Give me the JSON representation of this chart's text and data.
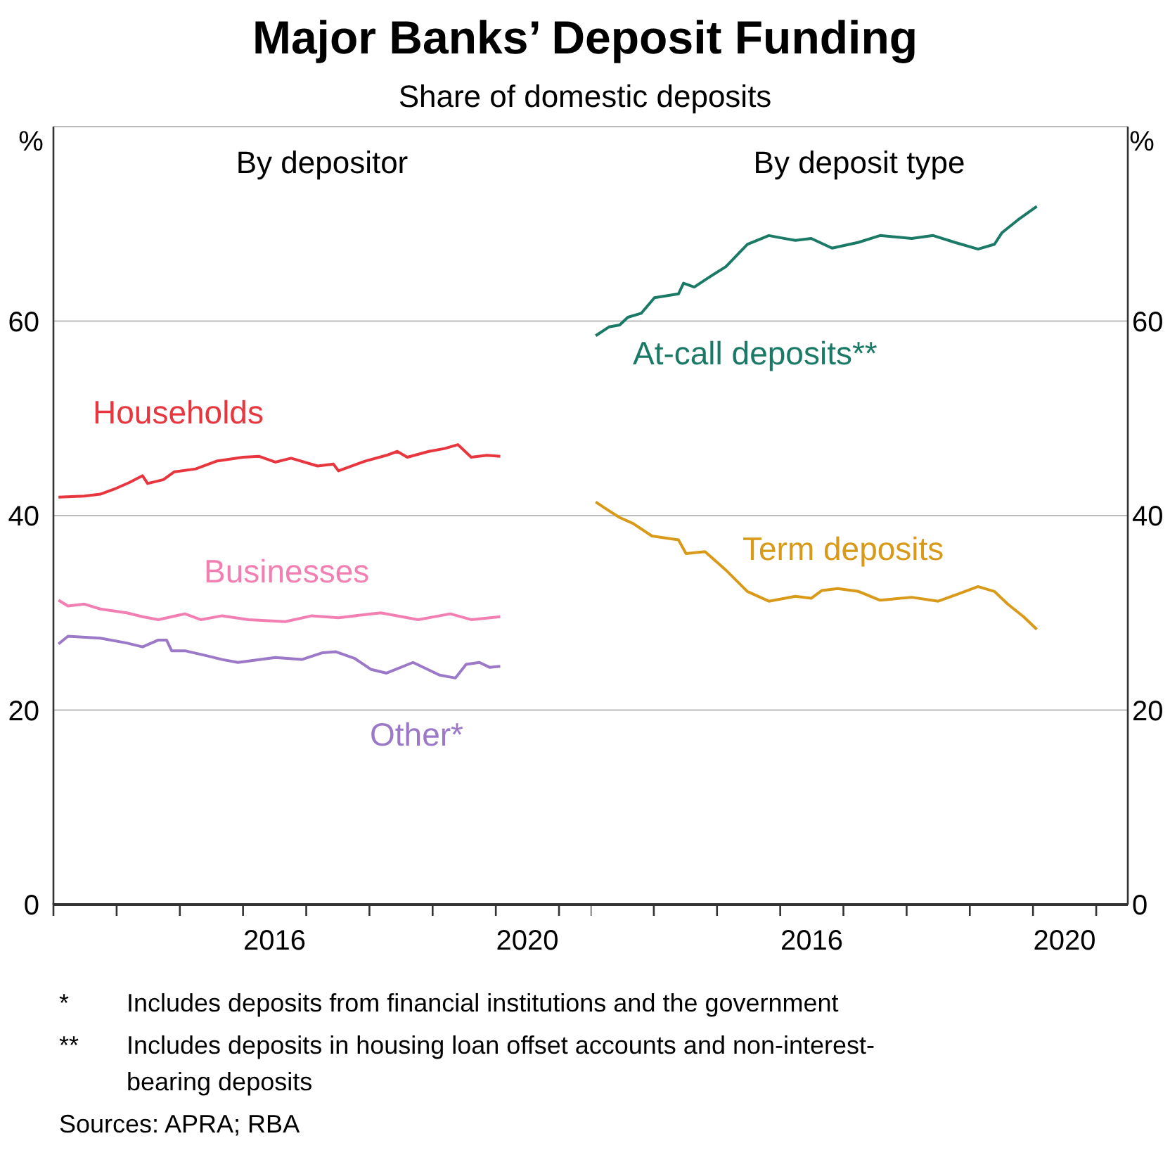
{
  "chart_data": [
    {
      "type": "line",
      "title": "Major Banks’ Deposit Funding",
      "subtitle": "Share of domestic deposits",
      "ylabel": "%",
      "annotations": [
        "By depositor",
        "* Includes deposits from financial institutions and the government",
        "** Includes deposits in housing loan offset accounts and non-interest-bearing deposits",
        "Sources: APRA; RBA"
      ],
      "xlim": [
        2013,
        2021.5
      ],
      "xticks": [
        {
          "value": 2013,
          "label": null
        },
        {
          "value": 2014,
          "label": null
        },
        {
          "value": 2015,
          "label": null
        },
        {
          "value": 2016,
          "label": null
        },
        {
          "value": 2017,
          "label": null
        },
        {
          "value": 2018,
          "label": null
        },
        {
          "value": 2019,
          "label": null
        },
        {
          "value": 2020,
          "label": null
        },
        {
          "value": 2021,
          "label": null
        },
        {
          "value": 2016.5,
          "label": "2016"
        },
        {
          "value": 2020.5,
          "label": "2020"
        }
      ],
      "ylim": [
        0,
        80
      ],
      "yticks": [
        0,
        20,
        40,
        60,
        {
          "value": 80,
          "label": null
        }
      ],
      "grid": "y",
      "legend": false,
      "series": [
        {
          "name": "Households",
          "color": "#e8363f",
          "x": [
            2013.08,
            2013.49,
            2013.74,
            2013.99,
            2014.2,
            2014.41,
            2014.49,
            2014.74,
            2014.91,
            2015.25,
            2015.58,
            2016.0,
            2016.25,
            2016.51,
            2016.76,
            2017.18,
            2017.43,
            2017.51,
            2017.93,
            2018.27,
            2018.44,
            2018.6,
            2018.94,
            2019.19,
            2019.4,
            2019.61,
            2019.86,
            2020.07
          ],
          "values": [
            41.9,
            42.0,
            42.2,
            42.8,
            43.4,
            44.1,
            43.3,
            43.7,
            44.5,
            44.8,
            45.6,
            46.0,
            46.1,
            45.5,
            45.9,
            45.1,
            45.3,
            44.6,
            45.6,
            46.2,
            46.6,
            46.0,
            46.6,
            46.9,
            47.3,
            46.0,
            46.2,
            46.1
          ]
        },
        {
          "name": "Businesses",
          "color": "#f27fb2",
          "x": [
            2013.08,
            2013.23,
            2013.49,
            2013.74,
            2014.16,
            2014.41,
            2014.66,
            2015.08,
            2015.33,
            2015.67,
            2016.09,
            2016.67,
            2017.09,
            2017.51,
            2018.18,
            2018.77,
            2019.28,
            2019.61,
            2020.07
          ],
          "values": [
            31.3,
            30.7,
            30.9,
            30.4,
            30.0,
            29.6,
            29.3,
            29.9,
            29.3,
            29.7,
            29.3,
            29.1,
            29.7,
            29.5,
            30.0,
            29.3,
            29.9,
            29.3,
            29.6
          ]
        },
        {
          "name": "Other*",
          "color": "#9c78c9",
          "x": [
            2013.08,
            2013.23,
            2013.74,
            2014.16,
            2014.41,
            2014.66,
            2014.79,
            2014.87,
            2015.08,
            2015.42,
            2015.67,
            2015.92,
            2016.51,
            2016.93,
            2017.26,
            2017.47,
            2017.77,
            2018.02,
            2018.27,
            2018.69,
            2019.11,
            2019.36,
            2019.53,
            2019.74,
            2019.9,
            2020.07
          ],
          "values": [
            26.8,
            27.6,
            27.4,
            26.9,
            26.5,
            27.2,
            27.2,
            26.1,
            26.1,
            25.6,
            25.2,
            24.9,
            25.4,
            25.2,
            25.9,
            26.0,
            25.3,
            24.2,
            23.8,
            24.9,
            23.6,
            23.3,
            24.7,
            24.9,
            24.4,
            24.5
          ]
        }
      ]
    },
    {
      "type": "line",
      "title": "By deposit type",
      "ylabel": "%",
      "xlim": [
        2013,
        2021.5
      ],
      "xticks": [
        {
          "value": 2013,
          "label": null
        },
        {
          "value": 2014,
          "label": null
        },
        {
          "value": 2015,
          "label": null
        },
        {
          "value": 2016,
          "label": null
        },
        {
          "value": 2017,
          "label": null
        },
        {
          "value": 2018,
          "label": null
        },
        {
          "value": 2019,
          "label": null
        },
        {
          "value": 2020,
          "label": null
        },
        {
          "value": 2021,
          "label": null
        },
        {
          "value": 2016.5,
          "label": "2016"
        },
        {
          "value": 2020.5,
          "label": "2020"
        }
      ],
      "ylim": [
        0,
        80
      ],
      "yticks": [
        0,
        20,
        40,
        60,
        {
          "value": 80,
          "label": null
        }
      ],
      "grid": "y",
      "legend": false,
      "series": [
        {
          "name": "At-call deposits**",
          "color": "#1a7a65",
          "x": [
            2013.08,
            2013.29,
            2013.46,
            2013.59,
            2013.8,
            2014.01,
            2014.39,
            2014.47,
            2014.64,
            2014.85,
            2015.14,
            2015.48,
            2015.82,
            2015.98,
            2016.24,
            2016.49,
            2016.82,
            2017.24,
            2017.58,
            2018.08,
            2018.42,
            2018.76,
            2019.13,
            2019.39,
            2019.51,
            2019.76,
            2020.06
          ],
          "values": [
            58.5,
            59.4,
            59.6,
            60.4,
            60.8,
            62.4,
            62.8,
            63.9,
            63.5,
            64.4,
            65.6,
            67.9,
            68.8,
            68.6,
            68.3,
            68.5,
            67.5,
            68.1,
            68.8,
            68.5,
            68.8,
            68.1,
            67.4,
            67.9,
            69.1,
            70.4,
            71.8
          ]
        },
        {
          "name": "Term deposits",
          "color": "#d99a1a",
          "x": [
            2013.08,
            2013.29,
            2013.46,
            2013.67,
            2013.97,
            2014.39,
            2014.51,
            2014.81,
            2015.14,
            2015.48,
            2015.82,
            2016.24,
            2016.49,
            2016.66,
            2016.91,
            2017.24,
            2017.58,
            2018.08,
            2018.5,
            2018.84,
            2019.13,
            2019.39,
            2019.6,
            2019.85,
            2020.06
          ],
          "values": [
            41.4,
            40.5,
            39.8,
            39.2,
            37.9,
            37.5,
            36.1,
            36.3,
            34.4,
            32.2,
            31.2,
            31.7,
            31.5,
            32.3,
            32.5,
            32.2,
            31.3,
            31.6,
            31.2,
            32.0,
            32.7,
            32.2,
            30.9,
            29.6,
            28.3
          ]
        }
      ]
    }
  ]
}
